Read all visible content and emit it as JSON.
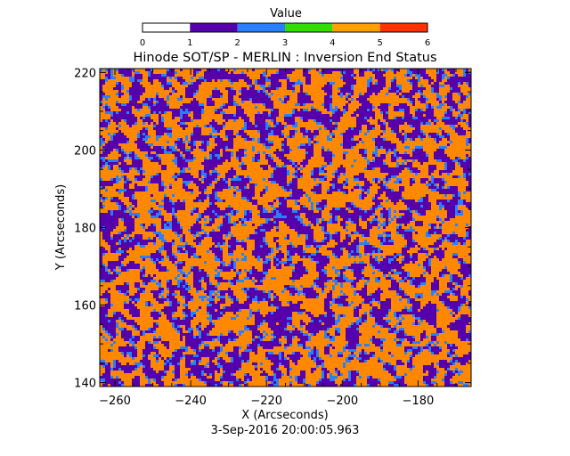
{
  "chart_data": {
    "type": "heatmap",
    "title": "Hinode SOT/SP - MERLIN : Inversion End Status",
    "xlabel": "X (Arcseconds)",
    "ylabel": "Y (Arcseconds)",
    "xlim": [
      -264,
      -166
    ],
    "ylim": [
      139,
      221
    ],
    "x_ticks": [
      -260,
      -240,
      -220,
      -200,
      -180
    ],
    "y_ticks": [
      140,
      160,
      180,
      200,
      220
    ],
    "x_tick_labels": [
      "−260",
      "−240",
      "−220",
      "−200",
      "−180"
    ],
    "y_tick_labels": [
      "140",
      "160",
      "180",
      "200",
      "220"
    ],
    "value_distribution": [
      {
        "value": 1,
        "color": "#5500aa",
        "fraction": 0.38
      },
      {
        "value": 2,
        "color": "#2a7fff",
        "fraction": 0.12
      },
      {
        "value": 4,
        "color": "#ff8800",
        "fraction": 0.5
      }
    ],
    "colorbar": {
      "title": "Value",
      "range": [
        0,
        6
      ],
      "tick_labels": [
        "0",
        "1",
        "2",
        "3",
        "4",
        "5",
        "6"
      ],
      "colors": [
        "#ffffff",
        "#5500aa",
        "#2a7fff",
        "#33dd00",
        "#ffa000",
        "#ff3300"
      ]
    },
    "timestamp": "3-Sep-2016 20:00:05.963"
  }
}
